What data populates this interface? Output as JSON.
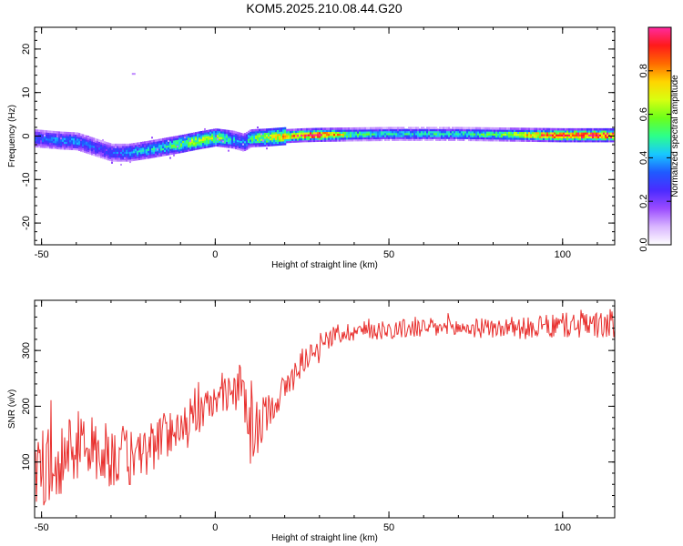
{
  "title": "KOM5.2025.210.08.44.G20",
  "colors": {
    "snr_line": "#e8302e",
    "colormap": [
      "#ffffff",
      "#d9b6ff",
      "#9b4bff",
      "#4b2bff",
      "#1f5aff",
      "#18c8ff",
      "#2cff8a",
      "#6cff1a",
      "#d8ff10",
      "#ffd400",
      "#ff6a00",
      "#ff1a1a",
      "#ff2aa0"
    ]
  },
  "chart_data": [
    {
      "type": "heatmap",
      "title": "KOM5.2025.210.08.44.G20",
      "xlabel": "Height of straight line (km)",
      "ylabel": "Frequency (Hz)",
      "xlim": [
        -52,
        115
      ],
      "ylim": [
        -25,
        25
      ],
      "x_ticks": [
        -50,
        0,
        50,
        100
      ],
      "y_ticks": [
        -20,
        -10,
        0,
        10,
        20
      ],
      "colorbar": {
        "label": "Normalized spectral amplitude",
        "range": [
          0,
          1
        ],
        "ticks": [
          0.0,
          0.2,
          0.4,
          0.6,
          0.8
        ]
      },
      "ridge": {
        "x": [
          -52,
          -45,
          -40,
          -35,
          -30,
          -25,
          -20,
          -15,
          -10,
          -5,
          0,
          5,
          8,
          10,
          15,
          20,
          25,
          30,
          40,
          50,
          60,
          70,
          80,
          90,
          100,
          115
        ],
        "frequency": [
          -0.5,
          -1.0,
          -1.2,
          -2.5,
          -3.8,
          -3.8,
          -3.2,
          -2.5,
          -1.8,
          -1.0,
          -0.3,
          -0.8,
          -1.5,
          -0.5,
          -0.3,
          0.0,
          0.2,
          0.3,
          0.4,
          0.5,
          0.5,
          0.5,
          0.4,
          0.3,
          0.2,
          0.2
        ],
        "amplitude": [
          0.3,
          0.35,
          0.35,
          0.3,
          0.3,
          0.35,
          0.4,
          0.45,
          0.55,
          0.6,
          0.6,
          0.4,
          0.35,
          0.5,
          0.6,
          0.75,
          0.85,
          0.9,
          0.5,
          0.45,
          0.45,
          0.45,
          0.5,
          0.7,
          0.9,
          0.95
        ]
      }
    },
    {
      "type": "line",
      "xlabel": "Height of straight line (km)",
      "ylabel": "SNR (v/v)",
      "xlim": [
        -52,
        115
      ],
      "ylim": [
        0,
        390
      ],
      "x_ticks": [
        -50,
        0,
        50,
        100
      ],
      "y_ticks": [
        100,
        200,
        300
      ],
      "series": [
        {
          "x": [
            -52,
            -48,
            -44,
            -40,
            -36,
            -32,
            -28,
            -24,
            -20,
            -16,
            -12,
            -8,
            -4,
            0,
            4,
            8,
            10,
            12,
            16,
            20,
            24,
            28,
            32,
            36,
            40,
            50,
            60,
            70,
            80,
            90,
            100,
            105,
            110,
            115
          ],
          "y": [
            80,
            95,
            110,
            130,
            120,
            115,
            110,
            105,
            120,
            140,
            160,
            175,
            190,
            210,
            230,
            230,
            150,
            160,
            200,
            230,
            270,
            300,
            320,
            330,
            335,
            338,
            340,
            340,
            340,
            340,
            345,
            345,
            345,
            345
          ],
          "noise_amplitude": [
            70,
            70,
            65,
            65,
            60,
            60,
            60,
            55,
            50,
            45,
            40,
            40,
            35,
            30,
            30,
            50,
            70,
            50,
            30,
            30,
            25,
            20,
            20,
            18,
            18,
            18,
            18,
            18,
            18,
            20,
            22,
            25,
            25,
            25
          ]
        }
      ]
    }
  ]
}
